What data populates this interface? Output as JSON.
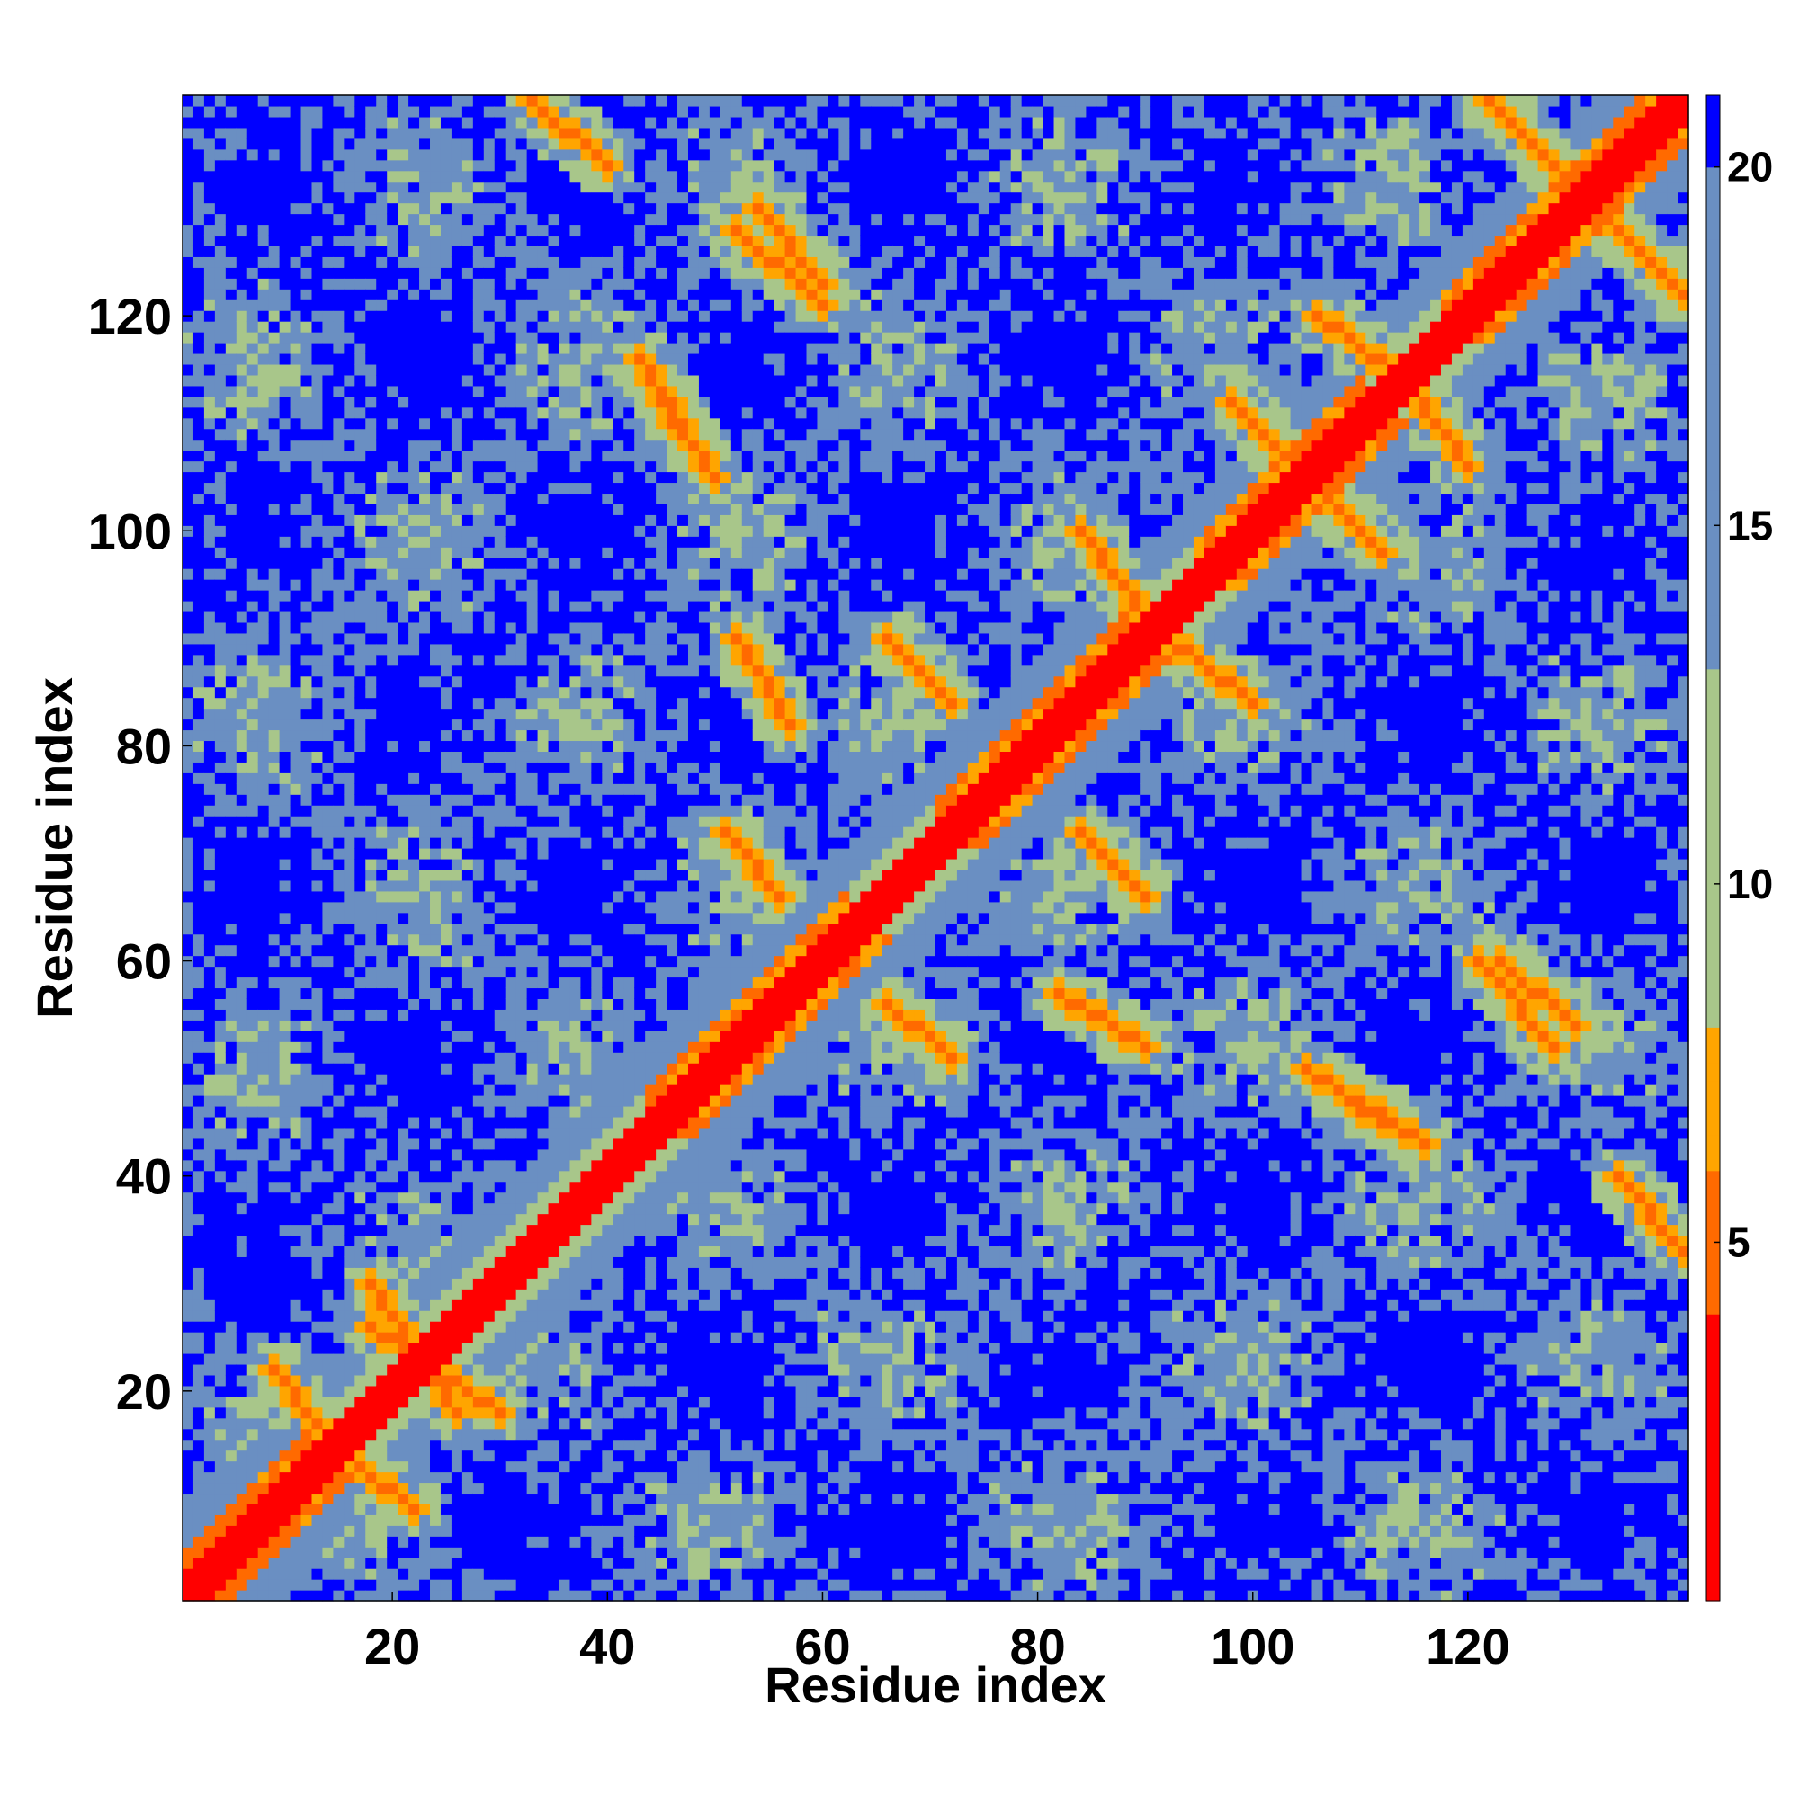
{
  "chart_data": {
    "type": "heatmap",
    "title": "",
    "xlabel": "Residue index",
    "ylabel": "Residue index",
    "n_residues": 140,
    "xlim": [
      1,
      140
    ],
    "ylim": [
      1,
      140
    ],
    "x_ticks": [
      20,
      40,
      60,
      80,
      100,
      120
    ],
    "y_ticks": [
      20,
      40,
      60,
      80,
      100,
      120
    ],
    "x_tick_labels": [
      "20",
      "40",
      "60",
      "80",
      "100",
      "120"
    ],
    "y_tick_labels": [
      "20",
      "40",
      "60",
      "80",
      "100",
      "120"
    ],
    "colorbar": {
      "ticks": [
        5,
        10,
        15,
        20
      ],
      "tick_labels": [
        "5",
        "10",
        "15",
        "20"
      ],
      "range": [
        0,
        21
      ],
      "cutoff": 20,
      "colors": {
        "contact": "#ff0000",
        "near": "#ff6a00",
        "medium": "#ffa500",
        "mid": "#a8c68a",
        "far": "#6a8fc2",
        "beyond": "#0000ff"
      }
    },
    "structure": {
      "diagonal_band": "distance < 4 within |i-j| <= 1",
      "helical_segments": [
        [
          1,
          12
        ],
        [
          44,
          62
        ],
        [
          71,
          88
        ],
        [
          95,
          110
        ],
        [
          118,
          140
        ]
      ],
      "antiparallel_contacts": [
        {
          "a": [
            18,
            26
          ],
          "b": [
            18,
            30
          ]
        },
        {
          "a": [
            9,
            15
          ],
          "b": [
            14,
            22
          ]
        },
        {
          "a": [
            51,
            56
          ],
          "b": [
            66,
            72
          ]
        },
        {
          "a": [
            52,
            57
          ],
          "b": [
            82,
            90
          ]
        },
        {
          "a": [
            66,
            72
          ],
          "b": [
            84,
            90
          ]
        },
        {
          "a": [
            84,
            90
          ],
          "b": [
            92,
            100
          ]
        },
        {
          "a": [
            98,
            106
          ],
          "b": [
            104,
            112
          ]
        },
        {
          "a": [
            106,
            113
          ],
          "b": [
            115,
            120
          ]
        },
        {
          "a": [
            105,
            112
          ],
          "b": [
            45,
            50
          ]
        },
        {
          "a": [
            121,
            128
          ],
          "b": [
            52,
            60
          ]
        },
        {
          "a": [
            54,
            60
          ],
          "b": [
            123,
            130
          ]
        },
        {
          "a": [
            43,
            48
          ],
          "b": [
            108,
            116
          ]
        },
        {
          "a": [
            33,
            40
          ],
          "b": [
            134,
            140
          ]
        },
        {
          "a": [
            122,
            135
          ],
          "b": [
            127,
            140
          ]
        }
      ]
    }
  }
}
